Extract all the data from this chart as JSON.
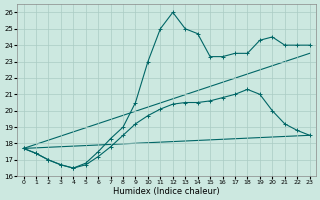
{
  "xlabel": "Humidex (Indice chaleur)",
  "bg_color": "#cce8e0",
  "grid_color": "#aaccc4",
  "line_color": "#006666",
  "xlim": [
    -0.5,
    23.5
  ],
  "ylim": [
    16,
    26.5
  ],
  "yticks": [
    16,
    17,
    18,
    19,
    20,
    21,
    22,
    23,
    24,
    25,
    26
  ],
  "xticks": [
    0,
    1,
    2,
    3,
    4,
    5,
    6,
    7,
    8,
    9,
    10,
    11,
    12,
    13,
    14,
    15,
    16,
    17,
    18,
    19,
    20,
    21,
    22,
    23
  ],
  "series": [
    {
      "x": [
        0,
        23
      ],
      "y": [
        17.7,
        18.5
      ],
      "marker": null,
      "linewidth": 0.8
    },
    {
      "x": [
        0,
        23
      ],
      "y": [
        17.7,
        23.5
      ],
      "marker": null,
      "linewidth": 0.8
    },
    {
      "x": [
        0,
        1,
        2,
        3,
        4,
        5,
        6,
        7,
        8,
        9,
        10,
        11,
        12,
        13,
        14,
        15,
        16,
        17,
        18,
        19,
        20,
        21,
        22,
        23
      ],
      "y": [
        17.7,
        17.4,
        17.0,
        16.7,
        16.5,
        16.7,
        17.2,
        17.8,
        18.5,
        19.2,
        19.7,
        20.1,
        20.4,
        20.5,
        20.5,
        20.6,
        20.8,
        21.0,
        21.3,
        21.0,
        20.0,
        19.2,
        18.8,
        18.5
      ],
      "marker": "+",
      "linewidth": 0.8
    },
    {
      "x": [
        0,
        1,
        2,
        3,
        4,
        5,
        6,
        7,
        8,
        9,
        10,
        11,
        12,
        13,
        14,
        15,
        16,
        17,
        18,
        19,
        20,
        21,
        22,
        23
      ],
      "y": [
        17.7,
        17.4,
        17.0,
        16.7,
        16.5,
        16.8,
        17.5,
        18.3,
        19.0,
        20.5,
        23.0,
        25.0,
        26.0,
        25.0,
        24.7,
        23.3,
        23.3,
        23.5,
        23.5,
        24.3,
        24.5,
        24.0,
        24.0,
        24.0
      ],
      "marker": "+",
      "linewidth": 0.8
    }
  ]
}
